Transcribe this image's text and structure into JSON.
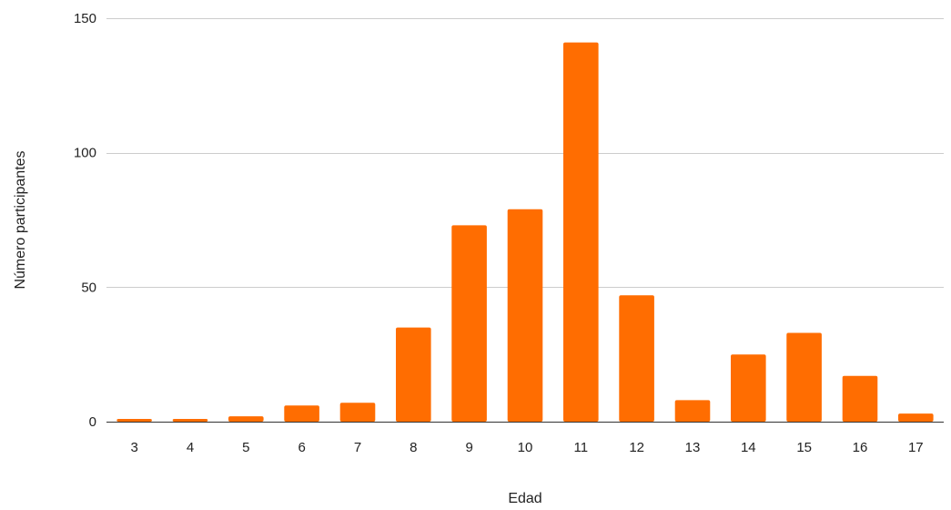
{
  "chart_data": {
    "type": "bar",
    "title": "",
    "xlabel": "Edad",
    "ylabel": "Número participantes",
    "categories": [
      "3",
      "4",
      "5",
      "6",
      "7",
      "8",
      "9",
      "10",
      "11",
      "12",
      "13",
      "14",
      "15",
      "16",
      "17"
    ],
    "values": [
      1,
      1,
      2,
      6,
      7,
      35,
      73,
      79,
      141,
      47,
      8,
      25,
      33,
      17,
      3
    ],
    "ylim": [
      0,
      150
    ],
    "yticks": [
      0,
      50,
      100,
      150
    ],
    "grid": true,
    "legend": "none",
    "colors": {
      "bar": "#ff6d01",
      "grid": "#cccccc",
      "axis": "#333333"
    }
  }
}
